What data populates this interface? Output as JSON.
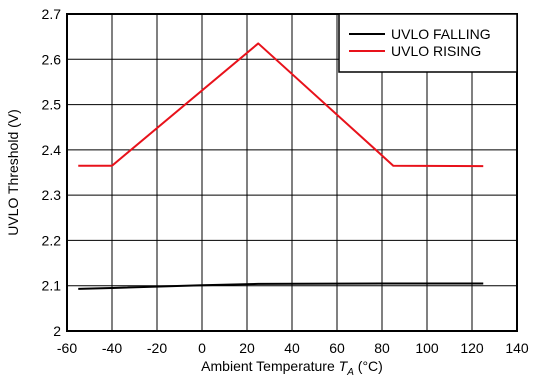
{
  "chart_data": {
    "type": "line",
    "title": "",
    "xlabel": "Ambient Temperature ",
    "xlabel_symbol": "T",
    "xlabel_subscript": "A",
    "xlabel_unit": " (°C)",
    "ylabel": "UVLO Threshold (V)",
    "xlim": [
      -60,
      140
    ],
    "ylim": [
      2,
      2.7
    ],
    "xticks": [
      -60,
      -40,
      -20,
      0,
      20,
      40,
      60,
      80,
      100,
      120,
      140
    ],
    "yticks": [
      2,
      2.1,
      2.2,
      2.3,
      2.4,
      2.5,
      2.6,
      2.7
    ],
    "xtick_labels": [
      "-60",
      "-40",
      "-20",
      "0",
      "20",
      "40",
      "60",
      "80",
      "100",
      "120",
      "140"
    ],
    "ytick_labels": [
      "2",
      "2.1",
      "2.2",
      "2.3",
      "2.4",
      "2.5",
      "2.6",
      "2.7"
    ],
    "grid": true,
    "legend_position": "top-right",
    "series": [
      {
        "name": "UVLO FALLING",
        "color": "#000000",
        "x": [
          -55,
          -40,
          0,
          25,
          85,
          125
        ],
        "y": [
          2.093,
          2.095,
          2.101,
          2.104,
          2.105,
          2.105
        ]
      },
      {
        "name": "UVLO RISING",
        "color": "#e8121b",
        "x": [
          -55,
          -40,
          25,
          85,
          125
        ],
        "y": [
          2.365,
          2.365,
          2.635,
          2.365,
          2.364
        ]
      }
    ]
  }
}
